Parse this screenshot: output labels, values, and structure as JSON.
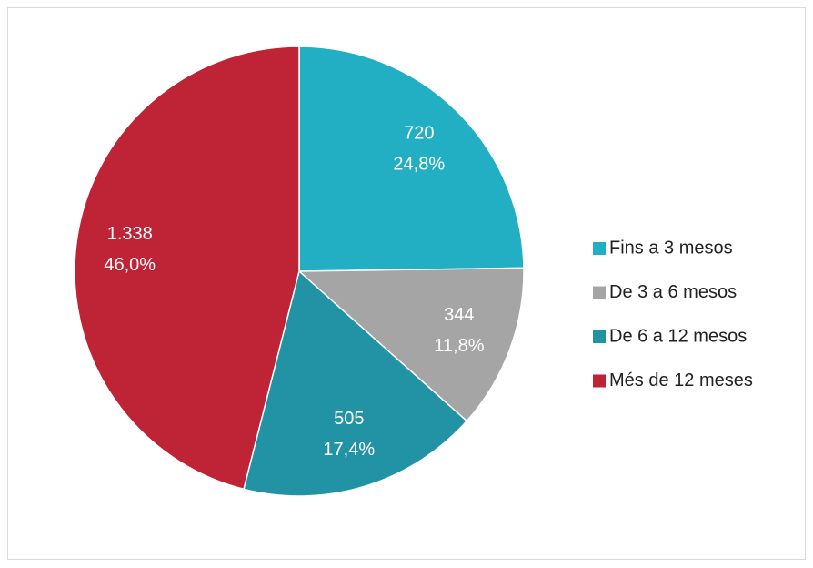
{
  "chart_data": {
    "type": "pie",
    "categories": [
      "Fins a 3 mesos",
      "De 3 a 6 mesos",
      "De 6 a 12 mesos",
      "Més de 12 meses"
    ],
    "values": [
      720,
      344,
      505,
      1338
    ],
    "value_labels": [
      "720",
      "344",
      "505",
      "1.338"
    ],
    "percent_labels": [
      "24,8%",
      "11,8%",
      "17,4%",
      "46,0%"
    ],
    "colors": [
      "#22afc4",
      "#a5a5a5",
      "#2293a5",
      "#be2336"
    ],
    "legend": "right"
  }
}
